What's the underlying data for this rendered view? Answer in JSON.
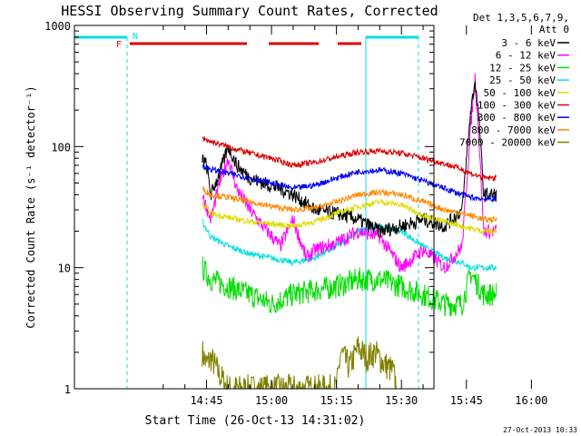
{
  "chart_data": {
    "type": "line",
    "title": "HESSI Observing Summary Count Rates, Corrected",
    "xlabel": "Start Time (26-Oct-13 14:31:02)",
    "ylabel": "Corrected Count Rate (s⁻¹ detector⁻¹)",
    "footer": "27-Oct-2013 10:33",
    "y_scale": "log",
    "ylim": [
      1,
      1000
    ],
    "xlim_minutes": [
      14.5,
      97.5
    ],
    "x_ticks": [
      {
        "m": 45,
        "label": "14:45"
      },
      {
        "m": 60,
        "label": "15:00"
      },
      {
        "m": 75,
        "label": "15:15"
      },
      {
        "m": 90,
        "label": "15:30"
      },
      {
        "m": 105,
        "label": "15:45"
      },
      {
        "m": 120,
        "label": "16:00"
      }
    ],
    "y_ticks": [
      {
        "v": 1,
        "label": "1"
      },
      {
        "v": 10,
        "label": "10"
      },
      {
        "v": 100,
        "label": "100"
      },
      {
        "v": 1000,
        "label": "1000"
      }
    ],
    "legend": {
      "header": [
        "Det 1,3,5,6,7,9,",
        "Att 0"
      ],
      "placement": "right"
    },
    "flags": [
      {
        "label": "F",
        "color": "#dd0000"
      },
      {
        "label": "N",
        "color": "#00e0e0"
      }
    ],
    "series": [
      {
        "name": "3 - 6 keV",
        "color": "#000000",
        "points": [
          [
            44,
            80
          ],
          [
            45,
            70
          ],
          [
            46,
            40
          ],
          [
            48,
            60
          ],
          [
            50,
            100
          ],
          [
            52,
            70
          ],
          [
            55,
            55
          ],
          [
            58,
            50
          ],
          [
            62,
            45
          ],
          [
            65,
            40
          ],
          [
            70,
            30
          ],
          [
            75,
            28
          ],
          [
            80,
            25
          ],
          [
            85,
            20
          ],
          [
            90,
            22
          ],
          [
            95,
            25
          ],
          [
            100,
            22
          ],
          [
            104,
            30
          ],
          [
            106,
            200
          ],
          [
            107,
            350
          ],
          [
            108,
            150
          ],
          [
            109,
            40
          ],
          [
            112,
            40
          ]
        ]
      },
      {
        "name": "6 - 12 keV",
        "color": "#ff00ff",
        "points": [
          [
            44,
            40
          ],
          [
            46,
            25
          ],
          [
            48,
            50
          ],
          [
            50,
            80
          ],
          [
            52,
            45
          ],
          [
            55,
            30
          ],
          [
            58,
            22
          ],
          [
            62,
            15
          ],
          [
            65,
            25
          ],
          [
            68,
            12
          ],
          [
            70,
            14
          ],
          [
            75,
            16
          ],
          [
            80,
            20
          ],
          [
            85,
            18
          ],
          [
            90,
            10
          ],
          [
            95,
            14
          ],
          [
            100,
            10
          ],
          [
            104,
            15
          ],
          [
            106,
            150
          ],
          [
            107,
            370
          ],
          [
            108,
            100
          ],
          [
            109,
            20
          ],
          [
            112,
            20
          ]
        ]
      },
      {
        "name": "12 - 25 keV",
        "color": "#00dd00",
        "points": [
          [
            44,
            10
          ],
          [
            46,
            8
          ],
          [
            50,
            7
          ],
          [
            55,
            6
          ],
          [
            60,
            5
          ],
          [
            65,
            6
          ],
          [
            70,
            6.5
          ],
          [
            75,
            7
          ],
          [
            80,
            8
          ],
          [
            85,
            8
          ],
          [
            90,
            7
          ],
          [
            95,
            6
          ],
          [
            100,
            5
          ],
          [
            104,
            5
          ],
          [
            106,
            9
          ],
          [
            109,
            6
          ],
          [
            112,
            6
          ]
        ]
      },
      {
        "name": "25 - 50 keV",
        "color": "#00dddd",
        "points": [
          [
            44,
            24
          ],
          [
            46,
            18
          ],
          [
            50,
            15
          ],
          [
            55,
            13
          ],
          [
            60,
            12
          ],
          [
            65,
            11
          ],
          [
            70,
            12
          ],
          [
            75,
            15
          ],
          [
            80,
            20
          ],
          [
            85,
            22
          ],
          [
            90,
            20
          ],
          [
            95,
            15
          ],
          [
            100,
            12
          ],
          [
            104,
            11
          ],
          [
            106,
            10
          ],
          [
            109,
            10
          ],
          [
            112,
            10
          ]
        ]
      },
      {
        "name": "50 - 100 keV",
        "color": "#dddd00",
        "points": [
          [
            44,
            33
          ],
          [
            46,
            28
          ],
          [
            50,
            26
          ],
          [
            55,
            24
          ],
          [
            60,
            23
          ],
          [
            65,
            22
          ],
          [
            70,
            24
          ],
          [
            75,
            28
          ],
          [
            80,
            32
          ],
          [
            85,
            35
          ],
          [
            90,
            33
          ],
          [
            95,
            27
          ],
          [
            100,
            24
          ],
          [
            104,
            22
          ],
          [
            106,
            21
          ],
          [
            109,
            20
          ],
          [
            112,
            20
          ]
        ]
      },
      {
        "name": "100 - 300 keV",
        "color": "#dd0000",
        "points": [
          [
            44,
            118
          ],
          [
            46,
            110
          ],
          [
            50,
            100
          ],
          [
            55,
            88
          ],
          [
            60,
            80
          ],
          [
            65,
            70
          ],
          [
            70,
            74
          ],
          [
            75,
            82
          ],
          [
            80,
            90
          ],
          [
            85,
            92
          ],
          [
            90,
            88
          ],
          [
            95,
            80
          ],
          [
            100,
            72
          ],
          [
            104,
            65
          ],
          [
            106,
            60
          ],
          [
            109,
            55
          ],
          [
            112,
            55
          ]
        ]
      },
      {
        "name": "300 - 800 keV",
        "color": "#0000ee",
        "points": [
          [
            44,
            70
          ],
          [
            46,
            65
          ],
          [
            50,
            60
          ],
          [
            55,
            55
          ],
          [
            60,
            50
          ],
          [
            65,
            45
          ],
          [
            70,
            48
          ],
          [
            75,
            55
          ],
          [
            80,
            62
          ],
          [
            85,
            64
          ],
          [
            90,
            60
          ],
          [
            95,
            52
          ],
          [
            100,
            45
          ],
          [
            104,
            40
          ],
          [
            106,
            38
          ],
          [
            109,
            37
          ],
          [
            112,
            37
          ]
        ]
      },
      {
        "name": "800 - 7000 keV",
        "color": "#ff8800",
        "points": [
          [
            44,
            45
          ],
          [
            46,
            40
          ],
          [
            50,
            38
          ],
          [
            55,
            35
          ],
          [
            60,
            32
          ],
          [
            65,
            30
          ],
          [
            70,
            31
          ],
          [
            75,
            35
          ],
          [
            80,
            40
          ],
          [
            85,
            42
          ],
          [
            90,
            40
          ],
          [
            95,
            35
          ],
          [
            100,
            30
          ],
          [
            104,
            28
          ],
          [
            106,
            27
          ],
          [
            109,
            25
          ],
          [
            112,
            25
          ]
        ]
      },
      {
        "name": "7000 - 20000 keV",
        "color": "#808000",
        "points": [
          [
            44,
            2.0
          ],
          [
            45,
            1.6
          ],
          [
            46,
            1.8
          ],
          [
            48,
            1.3
          ],
          [
            50,
            1.0
          ],
          [
            75,
            1.0
          ],
          [
            76,
            2.0
          ],
          [
            78,
            1.5
          ],
          [
            80,
            2.2
          ],
          [
            82,
            1.8
          ],
          [
            84,
            2.0
          ],
          [
            86,
            1.6
          ],
          [
            88,
            1.4
          ],
          [
            89,
            1.0
          ]
        ]
      }
    ]
  }
}
